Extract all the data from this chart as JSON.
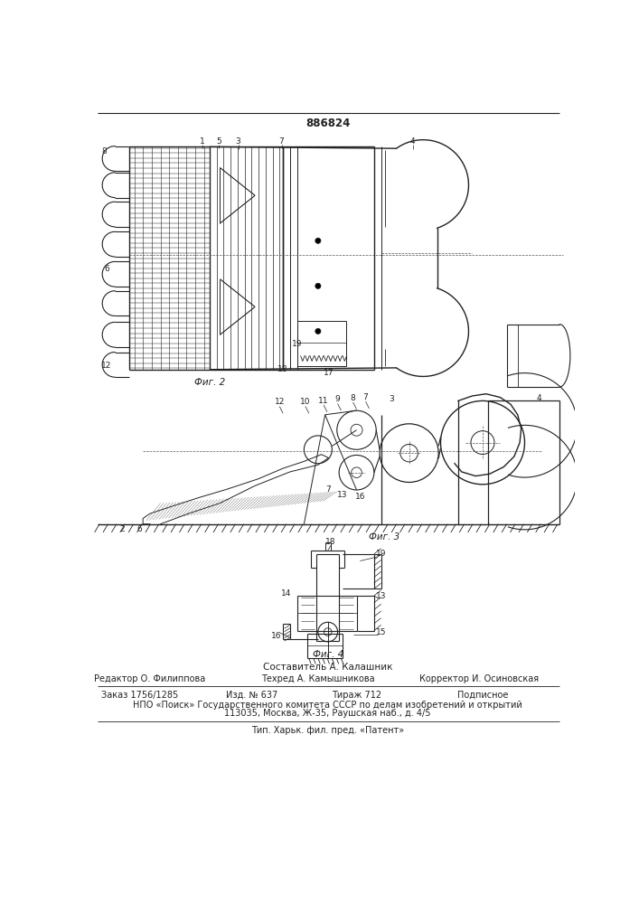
{
  "patent_number": "886824",
  "footer_composer": "Составитель А. Калашник",
  "footer_editor": "Редактор О. Филиппова",
  "footer_tech": "Техред А. Камышникова",
  "footer_corrector": "Корректор И. Осиновская",
  "footer_order": "Заказ 1756/1285",
  "footer_izd": "Изд. № 637",
  "footer_tirazh": "Тираж 712",
  "footer_podpisnoe": "Подписное",
  "footer_npo": "НПО «Поиск» Государственного комитета СССР по делам изобретений и открытий",
  "footer_address": "113035, Москва, Ж-35, Раушская наб., д. 4/5",
  "footer_tip": "Тип. Харьк. фил. пред. «Патент»",
  "bg_color": "#ffffff",
  "line_color": "#222222"
}
